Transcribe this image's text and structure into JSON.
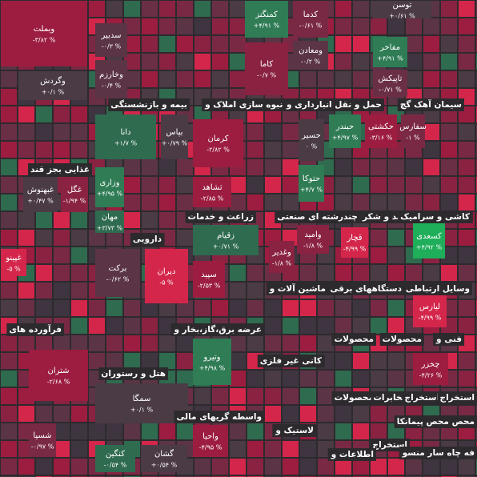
{
  "sectors": [
    "غذایی بجز قند",
    "بیمه و بازنشستگی",
    "انبوه سازی املاک و",
    "حمل و نقل انبارداری و",
    "سیمان آهک گچ",
    "زراعت و خدمات",
    "چندرشته ای صنعتی",
    "قند و شکر",
    "کاشی و سرامیک",
    "دارویی",
    "ماشین آلات و",
    "دستگاههای برقی",
    "وسایل ارتباطی",
    "فرآورده های",
    "عرضه برق،گاز،بخار و",
    "محصولات",
    "محصولات",
    "فنی و",
    "کانی غیر فلزی",
    "هتل و رستوران",
    "محصولات",
    "مخابرات",
    "استخراج",
    "استخراج",
    "واسطه گریهای مالی",
    "لاستیک و",
    "محص محص پیمانکا",
    "استخراج",
    "اطلاعات و",
    "فه چاه سار منسو"
  ],
  "tiles": [
    {
      "label": "وبملت",
      "change": "-۳/۸۲ %",
      "color": "#9c1d3f"
    },
    {
      "label": "وگردش",
      "change": "+۰/۱ %",
      "color": "#4a3b45"
    },
    {
      "label": "سدبیر",
      "change": "-۰/۳ %",
      "color": "#5b3446"
    },
    {
      "label": "وخارزم",
      "change": "-۰/۴ %",
      "color": "#5b3446"
    },
    {
      "label": "کمنگنز",
      "change": "+۴/۹۱ %",
      "color": "#2f7c55"
    },
    {
      "label": "کدما",
      "change": "-۰/۶۱ %",
      "color": "#7a2944"
    },
    {
      "label": "توسن",
      "change": "+۰/۶۱ %",
      "color": "#4a3b45"
    },
    {
      "label": "مفاخر",
      "change": "+۴/۹۱ %",
      "color": "#2f7c55"
    },
    {
      "label": "ومعادن",
      "change": "-۰/۲ %",
      "color": "#5b3446"
    },
    {
      "label": "کاما",
      "change": "-۰/۷ %",
      "color": "#8a2242"
    },
    {
      "label": "تاپیکش",
      "change": "-۰/۷۱ %",
      "color": "#6a2f45"
    },
    {
      "label": "دانا",
      "change": "+۱/۷ %",
      "color": "#2f6b4f"
    },
    {
      "label": "بپاس",
      "change": "+۰/۷۹ %",
      "color": "#4a3b45"
    },
    {
      "label": "کرمان",
      "change": "-۲/۸۲ %",
      "color": "#9c1d3f"
    },
    {
      "label": "حسیر",
      "change": "۰ %",
      "color": "#4a3b45"
    },
    {
      "label": "حبندر",
      "change": "+۴/۹۷ %",
      "color": "#2f7c55"
    },
    {
      "label": "حکشتی",
      "change": "-۳/۱۶ %",
      "color": "#9c1d3f"
    },
    {
      "label": "سفارس",
      "change": "-۱ %",
      "color": "#7a2944"
    },
    {
      "label": "حتوکا",
      "change": "+۴/۷ %",
      "color": "#2f7c55"
    },
    {
      "label": "ثشاهد",
      "change": "-۲/۸۵ %",
      "color": "#9c1d3f"
    },
    {
      "label": "غگل",
      "change": "-۱/۹۴ %",
      "color": "#8a2242"
    },
    {
      "label": "غبهنوش",
      "change": "+۰/۴۷ %",
      "color": "#4a3b45"
    },
    {
      "label": "وزاری",
      "change": "+۴/۹۵ %",
      "color": "#2f7c55"
    },
    {
      "label": "مهان",
      "change": "+۳/۷۳ %",
      "color": "#2f6b4f"
    },
    {
      "label": "کسعدی",
      "change": "+۴/۹۲ %",
      "color": "#1fae5a"
    },
    {
      "label": "قچار",
      "change": "-۴/۹۹ %",
      "color": "#d4264b"
    },
    {
      "label": "وامید",
      "change": "-۱/۸ %",
      "color": "#8a2242"
    },
    {
      "label": "وغدیر",
      "change": "-۱/۸ %",
      "color": "#8a2242"
    },
    {
      "label": "زقیام",
      "change": "+۰/۷۱ %",
      "color": "#2f6b4f"
    },
    {
      "label": "برکت",
      "change": "-۰/۶۲ %",
      "color": "#5b3446"
    },
    {
      "label": "دیران",
      "change": "-۵ %",
      "color": "#d4264b"
    },
    {
      "label": "سپید",
      "change": "-۲/۵۳ %",
      "color": "#9c1d3f"
    },
    {
      "label": "لیارس",
      "change": "-۴/۹۹ %",
      "color": "#d4264b"
    },
    {
      "label": "وتیرو",
      "change": "+۴/۹۸ %",
      "color": "#2f7c55"
    },
    {
      "label": "شتران",
      "change": "-۲/۶۸ %",
      "color": "#9c1d3f"
    },
    {
      "label": "سمگا",
      "change": "+۰/۱ %",
      "color": "#4a3b45"
    },
    {
      "label": "شسپا",
      "change": "-۰/۹۷ %",
      "color": "#7a2944"
    },
    {
      "label": "کنگین",
      "change": "-۰/۵۴ %",
      "color": "#2f6b4f"
    },
    {
      "label": "گشان",
      "change": "+۰/۵۴ %",
      "color": "#4a3b45"
    },
    {
      "label": "واحیا",
      "change": "-۴/۹۵ %",
      "color": "#9c1d3f"
    },
    {
      "label": "چخزر",
      "change": "-۴/۲۶ %",
      "color": "#9c1d3f"
    },
    {
      "label": "غپینو",
      "change": "-۵ %",
      "color": "#d4264b"
    }
  ]
}
